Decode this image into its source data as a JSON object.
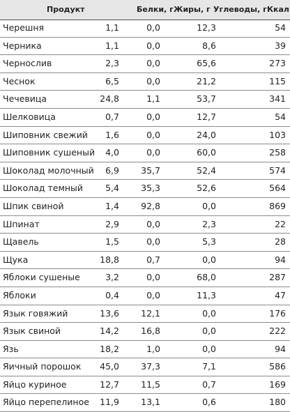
{
  "columns": {
    "product": "Продукт",
    "protein": "Белки, г",
    "fat": "Жиры, г",
    "carbs": "Углеводы, г",
    "kcal": "Ккал"
  },
  "rows": [
    {
      "name": "Черешня",
      "protein": "1,1",
      "fat": "0,0",
      "carbs": "12,3",
      "kcal": "54"
    },
    {
      "name": "Черника",
      "protein": "1,1",
      "fat": "0,0",
      "carbs": "8,6",
      "kcal": "39"
    },
    {
      "name": "Чернослив",
      "protein": "2,3",
      "fat": "0,0",
      "carbs": "65,6",
      "kcal": "273"
    },
    {
      "name": "Чеснок",
      "protein": "6,5",
      "fat": "0,0",
      "carbs": "21,2",
      "kcal": "115"
    },
    {
      "name": "Чечевица",
      "protein": "24,8",
      "fat": "1,1",
      "carbs": "53,7",
      "kcal": "341"
    },
    {
      "name": "Шелковица",
      "protein": "0,7",
      "fat": "0,0",
      "carbs": "12,7",
      "kcal": "54"
    },
    {
      "name": "Шиповник свежий",
      "protein": "1,6",
      "fat": "0,0",
      "carbs": "24,0",
      "kcal": "103"
    },
    {
      "name": "Шиповник сушеный",
      "protein": "4,0",
      "fat": "0,0",
      "carbs": "60,0",
      "kcal": "258"
    },
    {
      "name": "Шоколад молочный",
      "protein": "6,9",
      "fat": "35,7",
      "carbs": "52,4",
      "kcal": "574"
    },
    {
      "name": "Шоколад темный",
      "protein": "5,4",
      "fat": "35,3",
      "carbs": "52,6",
      "kcal": "564"
    },
    {
      "name": "Шпик свиной",
      "protein": "1,4",
      "fat": "92,8",
      "carbs": "0,0",
      "kcal": "869"
    },
    {
      "name": "Шпинат",
      "protein": "2,9",
      "fat": "0,0",
      "carbs": "2,3",
      "kcal": "22"
    },
    {
      "name": "Щавель",
      "protein": "1,5",
      "fat": "0,0",
      "carbs": "5,3",
      "kcal": "28"
    },
    {
      "name": "Щука",
      "protein": "18,8",
      "fat": "0,7",
      "carbs": "0,0",
      "kcal": "94"
    },
    {
      "name": "Яблоки сушеные",
      "protein": "3,2",
      "fat": "0,0",
      "carbs": "68,0",
      "kcal": "287"
    },
    {
      "name": "Яблоки",
      "protein": "0,4",
      "fat": "0,0",
      "carbs": "11,3",
      "kcal": "47"
    },
    {
      "name": "Язык говяжий",
      "protein": "13,6",
      "fat": "12,1",
      "carbs": "0,0",
      "kcal": "176"
    },
    {
      "name": "Язык свиной",
      "protein": "14,2",
      "fat": "16,8",
      "carbs": "0,0",
      "kcal": "222"
    },
    {
      "name": "Язь",
      "protein": "18,2",
      "fat": "1,0",
      "carbs": "0,0",
      "kcal": "94"
    },
    {
      "name": "Яичный порошок",
      "protein": "45,0",
      "fat": "37,3",
      "carbs": "7,1",
      "kcal": "586"
    },
    {
      "name": "Яйцо куриное",
      "protein": "12,7",
      "fat": "11,5",
      "carbs": "0,7",
      "kcal": "169"
    },
    {
      "name": "Яйцо перепелиное",
      "protein": "11,9",
      "fat": "13,1",
      "carbs": "0,6",
      "kcal": "180"
    }
  ]
}
